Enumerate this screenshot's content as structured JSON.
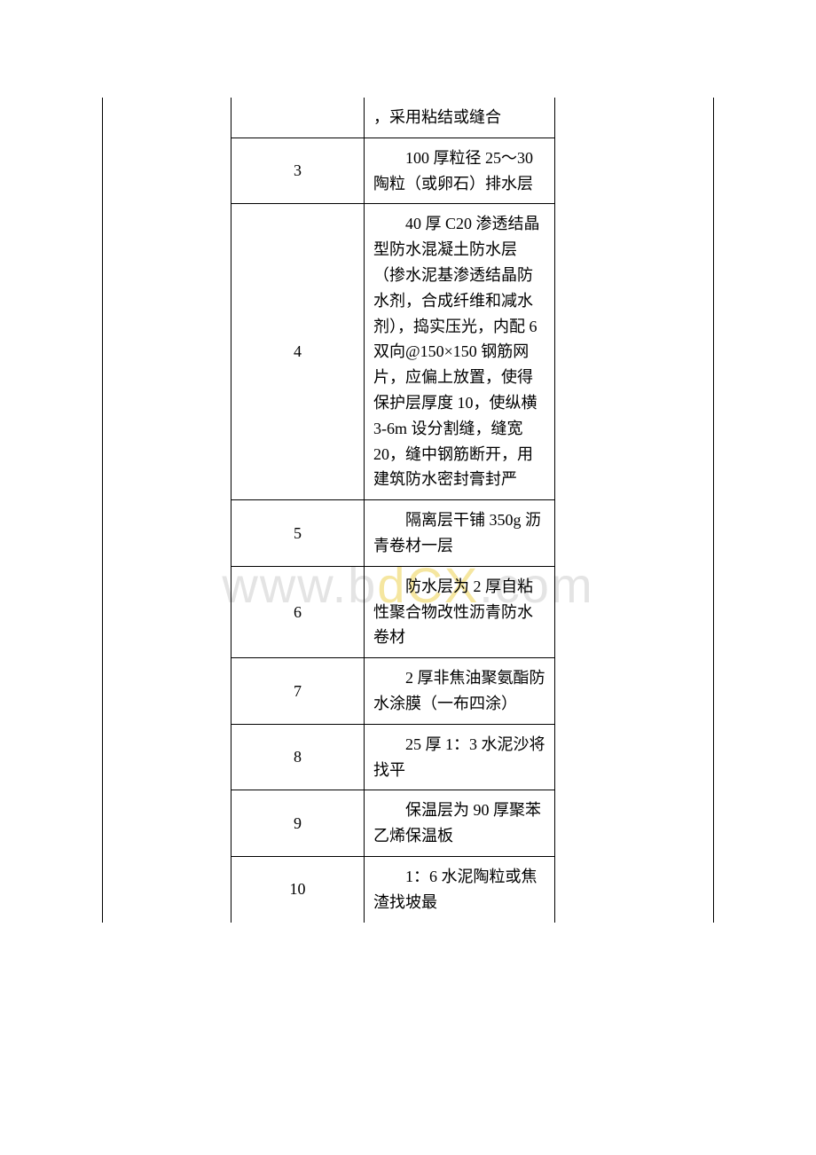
{
  "watermark": {
    "part1": "www.b",
    "part2": "dCX",
    "part3": ".com"
  },
  "table": {
    "rows": [
      {
        "num": "",
        "desc_prefix": "",
        "desc": "，采用粘结或缝合",
        "no_indent": true
      },
      {
        "num": "3",
        "desc": "100 厚粒径 25～30 陶粒（或卵石）排水层"
      },
      {
        "num": "4",
        "desc": "40 厚 C20 渗透结晶型防水混凝土防水层（掺水泥基渗透结晶防水剂，合成纤维和减水剂），捣实压光，内配 6 双向@150×150 钢筋网片，应偏上放置，使得保护层厚度 10，使纵横 3-6m 设分割缝，缝宽 20，缝中钢筋断开，用建筑防水密封膏封严"
      },
      {
        "num": "5",
        "desc": "隔离层干铺 350g 沥青卷材一层"
      },
      {
        "num": "6",
        "desc": "防水层为 2 厚自粘性聚合物改性沥青防水卷材"
      },
      {
        "num": "7",
        "desc": "2 厚非焦油聚氨酯防水涂膜（一布四涂）"
      },
      {
        "num": "8",
        "desc": "25 厚 1：3 水泥沙将找平"
      },
      {
        "num": "9",
        "desc": "保温层为 90 厚聚苯乙烯保温板"
      },
      {
        "num": "10",
        "desc": "1：6 水泥陶粒或焦渣找坡最",
        "no_bottom": true
      }
    ]
  }
}
